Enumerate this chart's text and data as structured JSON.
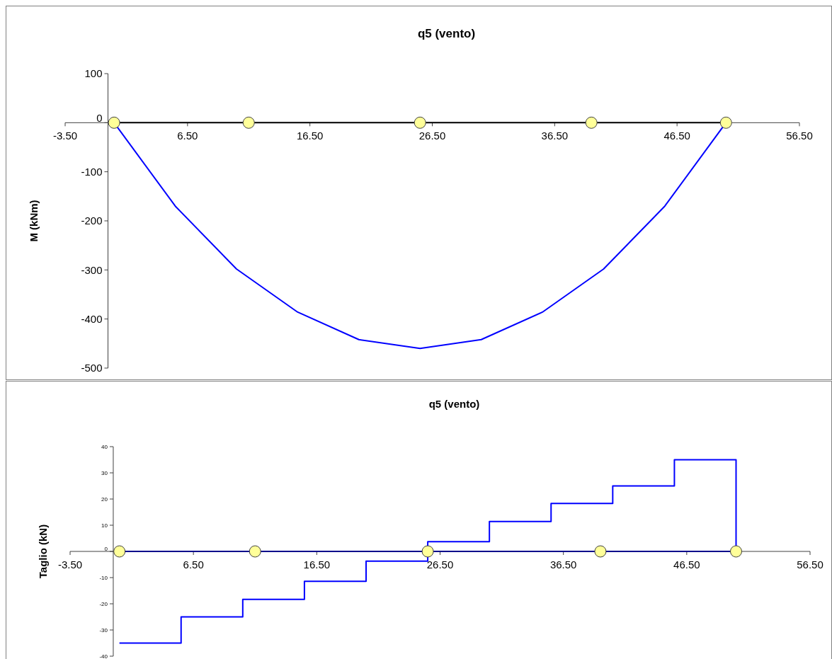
{
  "chart_data": [
    {
      "type": "line",
      "title": "q5 (vento)",
      "ylabel": "M (kNm)",
      "xlim": [
        -3.5,
        56.5
      ],
      "xticks": [
        {
          "value": -3.5,
          "label": "-3.50"
        },
        {
          "value": 6.5,
          "label": "6.50"
        },
        {
          "value": 16.5,
          "label": "16.50"
        },
        {
          "value": 26.5,
          "label": "26.50"
        },
        {
          "value": 36.5,
          "label": "36.50"
        },
        {
          "value": 46.5,
          "label": "46.50"
        },
        {
          "value": 56.5,
          "label": "56.50"
        }
      ],
      "ylim": [
        -500,
        100
      ],
      "yticks": [
        -500,
        -400,
        -300,
        -200,
        -100,
        0,
        100
      ],
      "grid": false,
      "series": [
        {
          "color": "#000000",
          "x": [
            0.5,
            50.5
          ],
          "values": [
            0,
            0
          ]
        },
        {
          "color": "#0000ff",
          "x": [
            0.5,
            5.5,
            10.5,
            15.5,
            20.5,
            25.5,
            30.5,
            35.5,
            40.5,
            45.5,
            50.5
          ],
          "values": [
            0,
            -170,
            -298,
            -386,
            -442,
            -460,
            -442,
            -386,
            -298,
            -170,
            0
          ]
        },
        {
          "type": "scatter",
          "color": "#ffff99",
          "marker": "circle",
          "x": [
            0.5,
            11.5,
            25.5,
            39.5,
            50.5
          ],
          "values": [
            0,
            0,
            0,
            0,
            0
          ]
        }
      ]
    },
    {
      "type": "step",
      "title": "q5 (vento)",
      "ylabel": "Taglio (kN)",
      "xlim": [
        -3.5,
        56.5
      ],
      "xticks": [
        {
          "value": -3.5,
          "label": "-3.50"
        },
        {
          "value": 6.5,
          "label": "6.50"
        },
        {
          "value": 16.5,
          "label": "16.50"
        },
        {
          "value": 26.5,
          "label": "26.50"
        },
        {
          "value": 36.5,
          "label": "36.50"
        },
        {
          "value": 46.5,
          "label": "46.50"
        },
        {
          "value": 56.5,
          "label": "56.50"
        }
      ],
      "ylim": [
        -40,
        40
      ],
      "yticks": [
        -40,
        -30,
        -20,
        -10,
        0,
        10,
        20,
        30,
        40
      ],
      "grid": false,
      "series": [
        {
          "type": "line",
          "color": "#00008b",
          "x": [
            0.5,
            50.5
          ],
          "values": [
            0,
            0
          ]
        },
        {
          "color": "#0000ff",
          "x": [
            0.5,
            5.5,
            10.5,
            15.5,
            20.5,
            25.5,
            30.5,
            35.5,
            40.5,
            45.5,
            50.5
          ],
          "values": [
            -35,
            -25,
            -18.3,
            -11.4,
            -3.7,
            3.7,
            11.4,
            18.3,
            25,
            35,
            0
          ]
        },
        {
          "type": "scatter",
          "color": "#ffff99",
          "marker": "circle",
          "x": [
            0.5,
            11.5,
            25.5,
            39.5,
            50.5
          ],
          "values": [
            0,
            0,
            0,
            0,
            0
          ]
        }
      ]
    }
  ]
}
